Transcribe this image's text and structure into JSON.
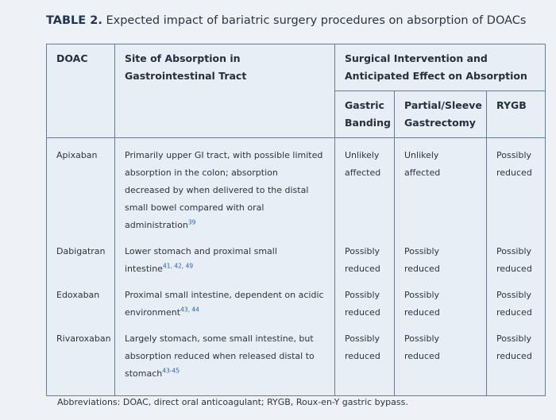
{
  "title": {
    "label": "TABLE 2.",
    "text": "Expected impact of bariatric surgery procedures on absorption of DOACs"
  },
  "table": {
    "headers": {
      "doac": "DOAC",
      "site": "Site of Absorption in Gastrointestinal Tract",
      "group": "Surgical Intervention and Anticipated Effect on Absorption",
      "sub": [
        "Gastric Banding",
        "Partial/Sleeve Gastrectomy",
        "RYGB"
      ]
    },
    "rows": [
      {
        "cells": [
          "Apixaban",
          "Primarily upper GI tract, with possible limited absorption in the colon; absorption decreased by when delivered to the distal small bowel compared with oral administration",
          "Unlikely affected",
          "Unlikely affected",
          "Possibly reduced"
        ],
        "ref": "39"
      },
      {
        "cells": [
          "Dabigatran",
          "Lower stomach and proximal small intestine",
          "Possibly reduced",
          "Possibly reduced",
          "Possibly reduced"
        ],
        "ref": "41, 42, 49"
      },
      {
        "cells": [
          "Edoxaban",
          "Proximal small intestine, dependent on acidic environment",
          "Possibly reduced",
          "Possibly reduced",
          "Possibly reduced"
        ],
        "ref": "43, 44"
      },
      {
        "cells": [
          "Rivaroxaban",
          "Largely stomach, some small intestine, but absorption reduced when released distal to stomach",
          "Possibly reduced",
          "Possibly reduced",
          "Possibly reduced"
        ],
        "ref": "43-45"
      }
    ]
  },
  "footnote": "Abbreviations: DOAC, direct oral anticoagulant; RYGB, Roux-en-Y gastric bypass."
}
